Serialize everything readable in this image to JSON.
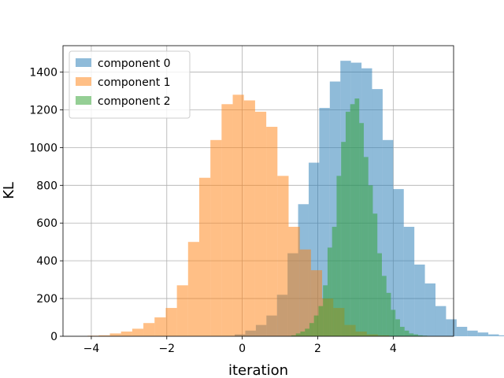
{
  "chart_data": {
    "type": "histogram",
    "xlabel": "iteration",
    "ylabel": "KL",
    "xlim": [
      -4.75,
      5.6
    ],
    "ylim": [
      0,
      1540
    ],
    "xticks": [
      -4,
      -2,
      0,
      2,
      4
    ],
    "yticks": [
      0,
      200,
      400,
      600,
      800,
      1000,
      1200,
      1400
    ],
    "grid": true,
    "legend_position": "upper-left",
    "series": [
      {
        "name": "component 0",
        "color": "#1f77b4",
        "alpha": 0.5,
        "bin_start": -0.2,
        "bin_width": 0.28,
        "counts": [
          10,
          30,
          60,
          110,
          220,
          440,
          700,
          920,
          1210,
          1350,
          1460,
          1450,
          1420,
          1310,
          1040,
          780,
          580,
          380,
          280,
          160,
          90,
          50,
          30,
          20,
          10,
          5
        ]
      },
      {
        "name": "component 1",
        "color": "#ff7f0e",
        "alpha": 0.5,
        "bin_start": -4.1,
        "bin_width": 0.296,
        "counts": [
          3,
          5,
          15,
          25,
          40,
          70,
          100,
          150,
          270,
          500,
          840,
          1040,
          1230,
          1280,
          1250,
          1190,
          1110,
          850,
          580,
          460,
          350,
          200,
          150,
          60,
          25,
          10,
          5
        ]
      },
      {
        "name": "component 2",
        "color": "#2ca02c",
        "alpha": 0.5,
        "bin_start": 1.3,
        "bin_width": 0.12,
        "counts": [
          5,
          15,
          25,
          40,
          70,
          110,
          160,
          270,
          470,
          580,
          850,
          1030,
          1190,
          1230,
          1260,
          1130,
          950,
          800,
          650,
          440,
          320,
          230,
          140,
          90,
          50,
          30,
          15,
          10,
          5,
          3
        ]
      }
    ]
  }
}
